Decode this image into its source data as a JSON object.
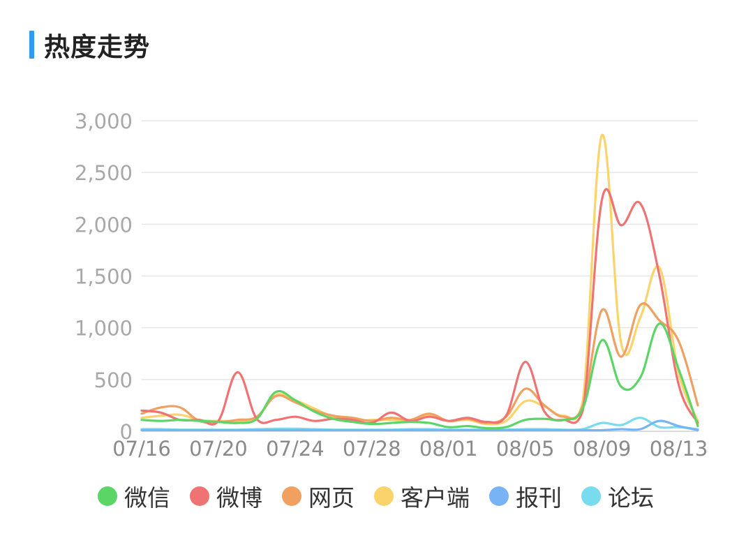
{
  "header": {
    "title": "热度走势",
    "accent_color": "#2f9bf0"
  },
  "chart_data": {
    "type": "line",
    "title": "热度走势",
    "xlabel": "",
    "ylabel": "",
    "ylim": [
      0,
      3000
    ],
    "grid": true,
    "legend_position": "bottom",
    "y_ticks": [
      "0",
      "500",
      "1,000",
      "1,500",
      "2,000",
      "2,500",
      "3,000"
    ],
    "x_ticks": [
      "07/16",
      "07/20",
      "07/24",
      "07/28",
      "08/01",
      "08/05",
      "08/09",
      "08/13"
    ],
    "x": [
      "07/16",
      "07/17",
      "07/18",
      "07/19",
      "07/20",
      "07/21",
      "07/22",
      "07/23",
      "07/24",
      "07/25",
      "07/26",
      "07/27",
      "07/28",
      "07/29",
      "07/30",
      "07/31",
      "08/01",
      "08/02",
      "08/03",
      "08/04",
      "08/05",
      "08/06",
      "08/07",
      "08/08",
      "08/09",
      "08/10",
      "08/11",
      "08/12",
      "08/13",
      "08/14"
    ],
    "series": [
      {
        "name": "微信",
        "color": "#5cd567",
        "values": [
          110,
          100,
          110,
          100,
          90,
          80,
          120,
          380,
          300,
          190,
          120,
          90,
          70,
          80,
          90,
          80,
          40,
          50,
          30,
          40,
          110,
          120,
          110,
          220,
          880,
          430,
          520,
          1040,
          600,
          50
        ]
      },
      {
        "name": "微博",
        "color": "#f07373",
        "values": [
          200,
          180,
          110,
          110,
          100,
          570,
          120,
          110,
          140,
          100,
          120,
          110,
          80,
          180,
          100,
          140,
          100,
          130,
          90,
          150,
          670,
          190,
          110,
          200,
          2240,
          1990,
          2200,
          1500,
          450,
          80
        ]
      },
      {
        "name": "网页",
        "color": "#f0a060",
        "values": [
          170,
          230,
          230,
          100,
          90,
          110,
          140,
          340,
          280,
          200,
          150,
          130,
          100,
          130,
          110,
          170,
          100,
          120,
          80,
          140,
          410,
          250,
          140,
          250,
          1170,
          720,
          1220,
          1070,
          870,
          250
        ]
      },
      {
        "name": "客户端",
        "color": "#fad46a",
        "values": [
          130,
          150,
          160,
          110,
          100,
          100,
          130,
          350,
          300,
          220,
          140,
          100,
          110,
          110,
          100,
          150,
          100,
          110,
          70,
          100,
          290,
          240,
          150,
          290,
          2860,
          850,
          1100,
          1580,
          560,
          100
        ]
      },
      {
        "name": "报刊",
        "color": "#78b4f5",
        "values": [
          10,
          10,
          10,
          10,
          10,
          10,
          10,
          10,
          10,
          10,
          10,
          10,
          10,
          10,
          10,
          10,
          10,
          10,
          10,
          10,
          10,
          10,
          10,
          10,
          10,
          20,
          20,
          100,
          50,
          10
        ]
      },
      {
        "name": "论坛",
        "color": "#78dcee",
        "values": [
          20,
          20,
          15,
          15,
          15,
          15,
          20,
          25,
          25,
          20,
          15,
          15,
          15,
          15,
          20,
          20,
          15,
          15,
          15,
          15,
          20,
          20,
          15,
          20,
          80,
          60,
          130,
          40,
          40,
          20
        ]
      }
    ]
  },
  "legend": {
    "items": [
      {
        "label": "微信",
        "color": "#5cd567"
      },
      {
        "label": "微博",
        "color": "#f07373"
      },
      {
        "label": "网页",
        "color": "#f0a060"
      },
      {
        "label": "客户端",
        "color": "#fad46a"
      },
      {
        "label": "报刊",
        "color": "#78b4f5"
      },
      {
        "label": "论坛",
        "color": "#78dcee"
      }
    ]
  }
}
